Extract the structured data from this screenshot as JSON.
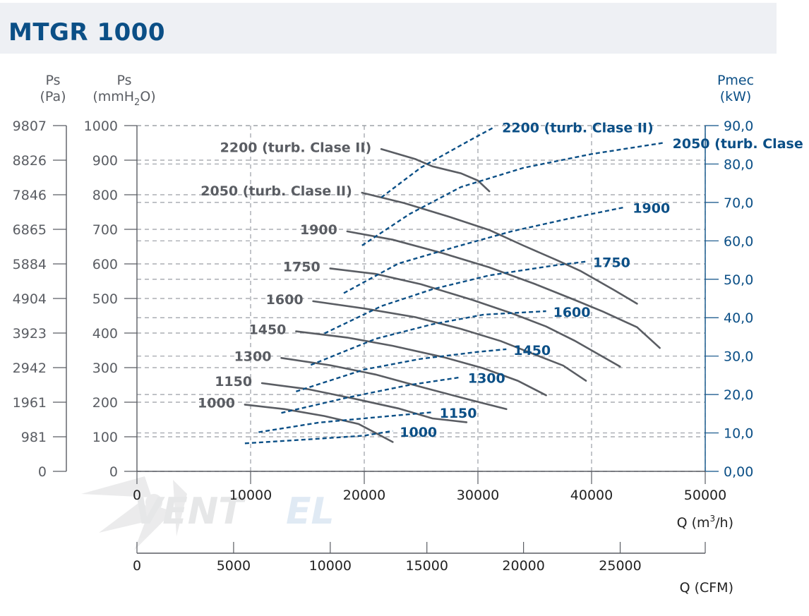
{
  "header": {
    "title": "MTGR 1000"
  },
  "colors": {
    "pressure_curve": "#5a5d63",
    "power_curve": "#0b4f86",
    "grid": "#9a9ea5",
    "axis": "#5a5d63",
    "header_bg": "#eef0f4"
  },
  "chart_data": {
    "type": "line",
    "axes": {
      "pa": {
        "label_line1": "Ps",
        "label_line2": "(Pa)",
        "ticks": [
          "0",
          "981",
          "1961",
          "2942",
          "3923",
          "4904",
          "5884",
          "6865",
          "7846",
          "8826",
          "9807"
        ]
      },
      "mmh2o": {
        "label_line1": "Ps",
        "label_line2": "(mmH2O)",
        "range": [
          0,
          1000
        ],
        "ticks": [
          0,
          100,
          200,
          300,
          400,
          500,
          600,
          700,
          800,
          900,
          1000
        ]
      },
      "pmec": {
        "label_line1": "Pmec",
        "label_line2": "(kW)",
        "range": [
          0,
          90
        ],
        "ticks": [
          "0,00",
          "10,0",
          "20,0",
          "30,0",
          "40,0",
          "50,0",
          "60,0",
          "70,0",
          "80,0",
          "90,0"
        ]
      },
      "q_m3h": {
        "label": "Q (m3/h)",
        "range": [
          0,
          50000
        ],
        "ticks": [
          0,
          10000,
          20000,
          30000,
          40000,
          50000
        ]
      },
      "q_cfm": {
        "label": "Q (CFM)",
        "range": [
          0,
          29400
        ],
        "ticks": [
          0,
          5000,
          10000,
          15000,
          20000,
          25000
        ]
      }
    },
    "pressure_series": [
      {
        "name": "1000",
        "points": [
          [
            9500,
            193
          ],
          [
            13000,
            180
          ],
          [
            16500,
            160
          ],
          [
            19500,
            137
          ],
          [
            22500,
            85
          ]
        ]
      },
      {
        "name": "1150",
        "points": [
          [
            11000,
            255
          ],
          [
            15000,
            238
          ],
          [
            19000,
            211
          ],
          [
            23000,
            182
          ],
          [
            26000,
            153
          ],
          [
            29000,
            142
          ]
        ]
      },
      {
        "name": "1300",
        "points": [
          [
            12700,
            328
          ],
          [
            17000,
            307
          ],
          [
            21000,
            280
          ],
          [
            25000,
            244
          ],
          [
            29500,
            205
          ],
          [
            32500,
            180
          ]
        ]
      },
      {
        "name": "1450",
        "points": [
          [
            14000,
            405
          ],
          [
            18500,
            387
          ],
          [
            22500,
            363
          ],
          [
            27000,
            330
          ],
          [
            30500,
            298
          ],
          [
            33500,
            262
          ],
          [
            36000,
            220
          ]
        ]
      },
      {
        "name": "1600",
        "points": [
          [
            15500,
            492
          ],
          [
            20000,
            471
          ],
          [
            24500,
            446
          ],
          [
            28500,
            412
          ],
          [
            32000,
            377
          ],
          [
            35000,
            338
          ],
          [
            37500,
            306
          ],
          [
            39500,
            262
          ]
        ]
      },
      {
        "name": "1750",
        "points": [
          [
            17000,
            587
          ],
          [
            21000,
            571
          ],
          [
            25000,
            541
          ],
          [
            29500,
            496
          ],
          [
            33000,
            457
          ],
          [
            36000,
            419
          ],
          [
            38500,
            378
          ],
          [
            42500,
            303
          ]
        ]
      },
      {
        "name": "1900",
        "points": [
          [
            18500,
            694
          ],
          [
            22500,
            670
          ],
          [
            27000,
            630
          ],
          [
            31000,
            590
          ],
          [
            35000,
            542
          ],
          [
            38500,
            496
          ],
          [
            41000,
            462
          ],
          [
            44000,
            417
          ],
          [
            46000,
            357
          ]
        ]
      },
      {
        "name": "2050 (turb. Clase II)",
        "points": [
          [
            19800,
            806
          ],
          [
            23500,
            776
          ],
          [
            27500,
            736
          ],
          [
            31000,
            698
          ],
          [
            34000,
            653
          ],
          [
            37000,
            610
          ],
          [
            39000,
            580
          ],
          [
            42000,
            524
          ],
          [
            44000,
            485
          ]
        ]
      },
      {
        "name": "2200 (turb. Clase II)",
        "points": [
          [
            21500,
            932
          ],
          [
            24500,
            903
          ],
          [
            26000,
            882
          ],
          [
            28500,
            862
          ],
          [
            30000,
            841
          ],
          [
            31000,
            810
          ]
        ]
      }
    ],
    "power_series": [
      {
        "name": "1000",
        "points": [
          [
            9500,
            7.3
          ],
          [
            15000,
            8.3
          ],
          [
            20000,
            9.3
          ],
          [
            22500,
            10.5
          ]
        ]
      },
      {
        "name": "1150",
        "points": [
          [
            10700,
            10.2
          ],
          [
            16000,
            12.7
          ],
          [
            21500,
            14.2
          ],
          [
            26000,
            15.4
          ]
        ]
      },
      {
        "name": "1300",
        "points": [
          [
            12700,
            15.2
          ],
          [
            18500,
            19.2
          ],
          [
            24000,
            22.5
          ],
          [
            28500,
            24.5
          ]
        ]
      },
      {
        "name": "1450",
        "points": [
          [
            14000,
            20.8
          ],
          [
            20000,
            26.5
          ],
          [
            25000,
            29.3
          ],
          [
            30000,
            31.1
          ],
          [
            32500,
            31.8
          ]
        ]
      },
      {
        "name": "1600",
        "points": [
          [
            15300,
            27.7
          ],
          [
            21000,
            34.5
          ],
          [
            26000,
            38.3
          ],
          [
            30500,
            40.8
          ],
          [
            36000,
            41.7
          ]
        ]
      },
      {
        "name": "1750",
        "points": [
          [
            16500,
            35.9
          ],
          [
            21500,
            43.0
          ],
          [
            26000,
            47.4
          ],
          [
            31000,
            51.0
          ],
          [
            36500,
            53.5
          ],
          [
            39500,
            54.6
          ]
        ]
      },
      {
        "name": "1900",
        "points": [
          [
            18200,
            46.4
          ],
          [
            23000,
            54.1
          ],
          [
            28000,
            58.4
          ],
          [
            33000,
            62.5
          ],
          [
            38000,
            65.8
          ],
          [
            43000,
            68.8
          ]
        ]
      },
      {
        "name": "2050 (turb. Clase II)",
        "points": [
          [
            19800,
            58.8
          ],
          [
            24000,
            67.0
          ],
          [
            28500,
            74.0
          ],
          [
            34000,
            79.0
          ],
          [
            40000,
            82.6
          ],
          [
            46500,
            85.6
          ]
        ]
      },
      {
        "name": "2200 (turb. Clase II)",
        "points": [
          [
            21500,
            71.3
          ],
          [
            25000,
            79.1
          ],
          [
            29000,
            85.7
          ],
          [
            31500,
            89.7
          ]
        ]
      }
    ],
    "pressure_labels": [
      "1000",
      "1150",
      "1300",
      "1450",
      "1600",
      "1750",
      "1900",
      "2050 (turb. Clase II)",
      "2200 (turb. Clase II)"
    ],
    "power_labels": [
      "1000",
      "1150",
      "1300",
      "1450",
      "1600",
      "1750",
      "1900",
      "2050 (turb. Clase II)",
      "2200 (turb. Clase II)"
    ],
    "grid": true
  }
}
